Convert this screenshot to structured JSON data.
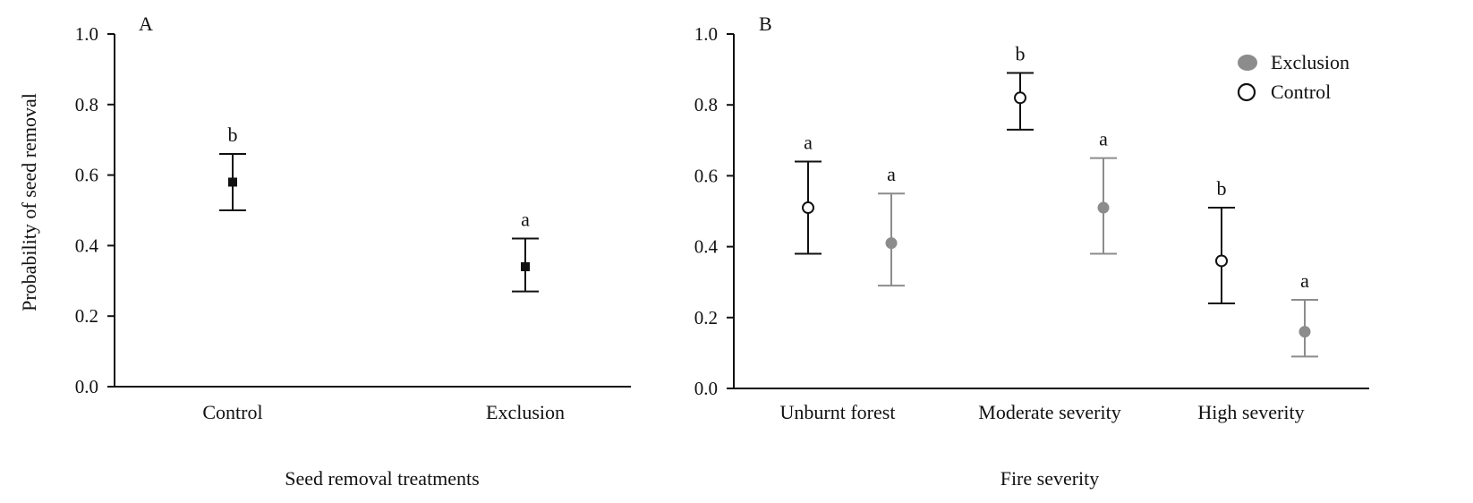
{
  "chart_data": [
    {
      "type": "scatter",
      "panel_label": "A",
      "xlabel": "Seed removal treatments",
      "ylabel": "Probability of seed removal",
      "ylim": [
        0,
        1
      ],
      "yticks": [
        "0.0",
        "0.2",
        "0.4",
        "0.6",
        "0.8",
        "1.0"
      ],
      "categories": [
        "Control",
        "Exclusion"
      ],
      "series": [
        {
          "marker": "filled-square",
          "color": "#111111",
          "values": [
            0.58,
            0.34
          ],
          "lower": [
            0.5,
            0.27
          ],
          "upper": [
            0.66,
            0.42
          ],
          "letters": [
            "b",
            "a"
          ]
        }
      ]
    },
    {
      "type": "scatter",
      "panel_label": "B",
      "xlabel": "Fire severity",
      "ylabel": "",
      "ylim": [
        0,
        1
      ],
      "yticks": [
        "0.0",
        "0.2",
        "0.4",
        "0.6",
        "0.8",
        "1.0"
      ],
      "categories": [
        "Unburnt forest",
        "Moderate severity",
        "High severity"
      ],
      "legend_position": "top-right",
      "series": [
        {
          "name": "Control",
          "marker": "open-circle",
          "color": "#111111",
          "values": [
            0.51,
            0.82,
            0.36
          ],
          "lower": [
            0.38,
            0.73,
            0.24
          ],
          "upper": [
            0.64,
            0.89,
            0.51
          ],
          "letters": [
            "a",
            "b",
            "b"
          ]
        },
        {
          "name": "Exclusion",
          "marker": "filled-circle",
          "color": "#8c8c8c",
          "values": [
            0.41,
            0.51,
            0.16
          ],
          "lower": [
            0.29,
            0.38,
            0.09
          ],
          "upper": [
            0.55,
            0.65,
            0.25
          ],
          "letters": [
            "a",
            "a",
            "a"
          ]
        }
      ],
      "legend": [
        {
          "label": "Exclusion",
          "marker": "filled-circle",
          "color": "#8c8c8c"
        },
        {
          "label": "Control",
          "marker": "open-circle",
          "color": "#111111"
        }
      ]
    }
  ]
}
